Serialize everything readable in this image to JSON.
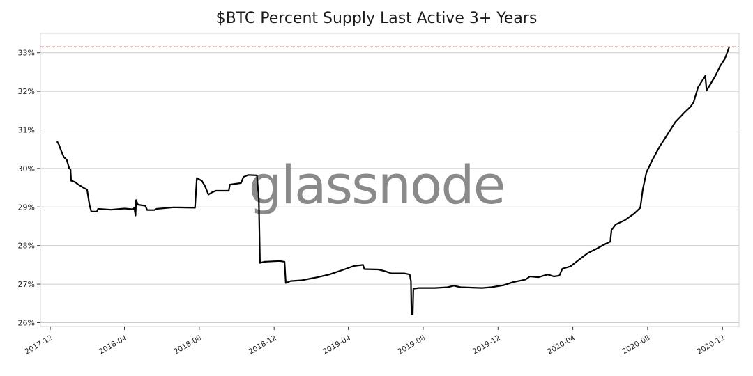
{
  "chart_data": {
    "type": "line",
    "title": "$BTC Percent Supply Last Active 3+ Years",
    "xlabel": "",
    "ylabel": "",
    "ylim": [
      25.9,
      33.5
    ],
    "xlim": [
      "2017-11-15",
      "2020-12-28"
    ],
    "grid": "horizontal",
    "colors": {
      "line": "#000000",
      "reference_line": "#d62728",
      "grid": "#cccccc",
      "watermark": "#8a8a8a"
    },
    "y_ticks": [
      {
        "value": 26,
        "label": "26%"
      },
      {
        "value": 27,
        "label": "27%"
      },
      {
        "value": 28,
        "label": "28%"
      },
      {
        "value": 29,
        "label": "29%"
      },
      {
        "value": 30,
        "label": "30%"
      },
      {
        "value": 31,
        "label": "31%"
      },
      {
        "value": 32,
        "label": "32%"
      },
      {
        "value": 33,
        "label": "33%"
      }
    ],
    "x_ticks": [
      {
        "value": "2017-12-01",
        "label": "2017-12"
      },
      {
        "value": "2018-04-01",
        "label": "2018-04"
      },
      {
        "value": "2018-08-01",
        "label": "2018-08"
      },
      {
        "value": "2018-12-01",
        "label": "2018-12"
      },
      {
        "value": "2019-04-01",
        "label": "2019-04"
      },
      {
        "value": "2019-08-01",
        "label": "2019-08"
      },
      {
        "value": "2019-12-01",
        "label": "2019-12"
      },
      {
        "value": "2020-04-01",
        "label": "2020-04"
      },
      {
        "value": "2020-08-01",
        "label": "2020-08"
      },
      {
        "value": "2020-12-01",
        "label": "2020-12"
      }
    ],
    "reference_line": {
      "y": 33.15,
      "style": "dashed"
    },
    "watermark": "glassnode",
    "series": [
      {
        "points": [
          [
            "2017-12-12",
            30.7
          ],
          [
            "2017-12-15",
            30.62
          ],
          [
            "2017-12-19",
            30.45
          ],
          [
            "2017-12-23",
            30.3
          ],
          [
            "2017-12-28",
            30.22
          ],
          [
            "2018-01-01",
            30.0
          ],
          [
            "2018-01-03",
            29.98
          ],
          [
            "2018-01-04",
            29.68
          ],
          [
            "2018-01-10",
            29.65
          ],
          [
            "2018-01-16",
            29.58
          ],
          [
            "2018-01-24",
            29.5
          ],
          [
            "2018-01-30",
            29.45
          ],
          [
            "2018-02-03",
            29.05
          ],
          [
            "2018-02-06",
            28.88
          ],
          [
            "2018-02-15",
            28.88
          ],
          [
            "2018-02-17",
            28.95
          ],
          [
            "2018-03-10",
            28.93
          ],
          [
            "2018-04-01",
            28.96
          ],
          [
            "2018-04-15",
            28.94
          ],
          [
            "2018-04-17",
            28.98
          ],
          [
            "2018-04-19",
            28.78
          ],
          [
            "2018-04-20",
            29.18
          ],
          [
            "2018-04-23",
            29.06
          ],
          [
            "2018-05-05",
            29.03
          ],
          [
            "2018-05-08",
            28.92
          ],
          [
            "2018-05-20",
            28.92
          ],
          [
            "2018-05-23",
            28.95
          ],
          [
            "2018-06-20",
            28.99
          ],
          [
            "2018-07-25",
            28.98
          ],
          [
            "2018-07-28",
            29.75
          ],
          [
            "2018-08-05",
            29.68
          ],
          [
            "2018-08-10",
            29.55
          ],
          [
            "2018-08-16",
            29.32
          ],
          [
            "2018-08-22",
            29.38
          ],
          [
            "2018-08-28",
            29.42
          ],
          [
            "2018-09-18",
            29.42
          ],
          [
            "2018-09-20",
            29.58
          ],
          [
            "2018-10-08",
            29.62
          ],
          [
            "2018-10-12",
            29.78
          ],
          [
            "2018-10-20",
            29.83
          ],
          [
            "2018-11-03",
            29.82
          ],
          [
            "2018-11-06",
            29.2
          ],
          [
            "2018-11-08",
            27.55
          ],
          [
            "2018-11-15",
            27.58
          ],
          [
            "2018-12-10",
            27.6
          ],
          [
            "2018-12-18",
            27.58
          ],
          [
            "2018-12-20",
            27.03
          ],
          [
            "2018-12-28",
            27.08
          ],
          [
            "2019-01-15",
            27.1
          ],
          [
            "2019-02-10",
            27.18
          ],
          [
            "2019-03-01",
            27.25
          ],
          [
            "2019-03-25",
            27.38
          ],
          [
            "2019-04-10",
            27.47
          ],
          [
            "2019-04-25",
            27.5
          ],
          [
            "2019-04-27",
            27.39
          ],
          [
            "2019-05-20",
            27.38
          ],
          [
            "2019-06-01",
            27.33
          ],
          [
            "2019-06-10",
            27.28
          ],
          [
            "2019-07-01",
            27.28
          ],
          [
            "2019-07-10",
            27.25
          ],
          [
            "2019-07-12",
            27.08
          ],
          [
            "2019-07-13",
            26.22
          ],
          [
            "2019-07-15",
            26.22
          ],
          [
            "2019-07-16",
            26.88
          ],
          [
            "2019-07-25",
            26.9
          ],
          [
            "2019-08-20",
            26.9
          ],
          [
            "2019-09-10",
            26.92
          ],
          [
            "2019-09-20",
            26.96
          ],
          [
            "2019-10-01",
            26.92
          ],
          [
            "2019-10-20",
            26.91
          ],
          [
            "2019-11-05",
            26.9
          ],
          [
            "2019-11-20",
            26.92
          ],
          [
            "2019-12-10",
            26.97
          ],
          [
            "2019-12-25",
            27.05
          ],
          [
            "2020-01-15",
            27.12
          ],
          [
            "2020-01-22",
            27.2
          ],
          [
            "2020-02-05",
            27.18
          ],
          [
            "2020-02-20",
            27.25
          ],
          [
            "2020-03-01",
            27.2
          ],
          [
            "2020-03-10",
            27.22
          ],
          [
            "2020-03-15",
            27.4
          ],
          [
            "2020-03-28",
            27.46
          ],
          [
            "2020-04-10",
            27.62
          ],
          [
            "2020-04-25",
            27.8
          ],
          [
            "2020-05-10",
            27.92
          ],
          [
            "2020-05-25",
            28.05
          ],
          [
            "2020-06-01",
            28.1
          ],
          [
            "2020-06-03",
            28.4
          ],
          [
            "2020-06-10",
            28.55
          ],
          [
            "2020-06-25",
            28.66
          ],
          [
            "2020-07-10",
            28.83
          ],
          [
            "2020-07-20",
            28.98
          ],
          [
            "2020-07-24",
            29.45
          ],
          [
            "2020-07-30",
            29.9
          ],
          [
            "2020-08-08",
            30.2
          ],
          [
            "2020-08-20",
            30.55
          ],
          [
            "2020-09-01",
            30.85
          ],
          [
            "2020-09-15",
            31.2
          ],
          [
            "2020-09-30",
            31.45
          ],
          [
            "2020-10-10",
            31.6
          ],
          [
            "2020-10-15",
            31.72
          ],
          [
            "2020-10-22",
            32.1
          ],
          [
            "2020-10-28",
            32.25
          ],
          [
            "2020-11-03",
            32.4
          ],
          [
            "2020-11-05",
            32.02
          ],
          [
            "2020-11-12",
            32.2
          ],
          [
            "2020-11-20",
            32.42
          ],
          [
            "2020-11-27",
            32.65
          ],
          [
            "2020-12-05",
            32.85
          ],
          [
            "2020-12-12",
            33.15
          ]
        ]
      }
    ]
  }
}
